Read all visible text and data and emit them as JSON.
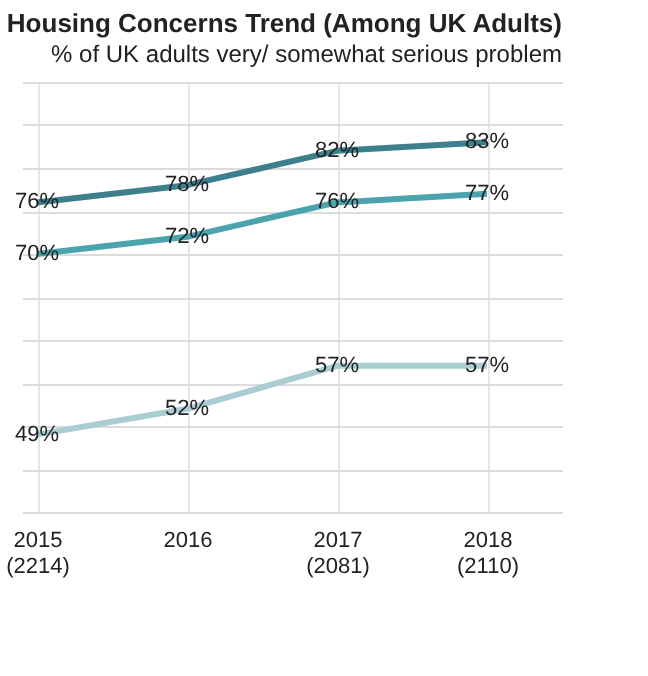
{
  "chart_data": {
    "type": "line",
    "title": "Housing Concerns Trend (Among UK Adults)",
    "subtitle": "% of UK adults very/ somewhat serious problem",
    "categories": [
      "2015\n(2214)",
      "2016",
      "2017\n(2081)",
      "2018\n(2110)"
    ],
    "series": [
      {
        "color": "#3d7f8c",
        "values": [
          76,
          78,
          82,
          83
        ],
        "value_labels": [
          "76%",
          "78%",
          "82%",
          "83%"
        ]
      },
      {
        "color": "#4aa3ad",
        "values": [
          70,
          72,
          76,
          77
        ],
        "value_labels": [
          "70%",
          "72%",
          "76%",
          "77%"
        ]
      },
      {
        "color": "#a9cdd3",
        "values": [
          49,
          52,
          57,
          57
        ],
        "value_labels": [
          "49%",
          "52%",
          "57%",
          "57%"
        ]
      }
    ],
    "tick_labels": "x",
    "grid": true,
    "marker": "none",
    "line_style": "solid"
  }
}
